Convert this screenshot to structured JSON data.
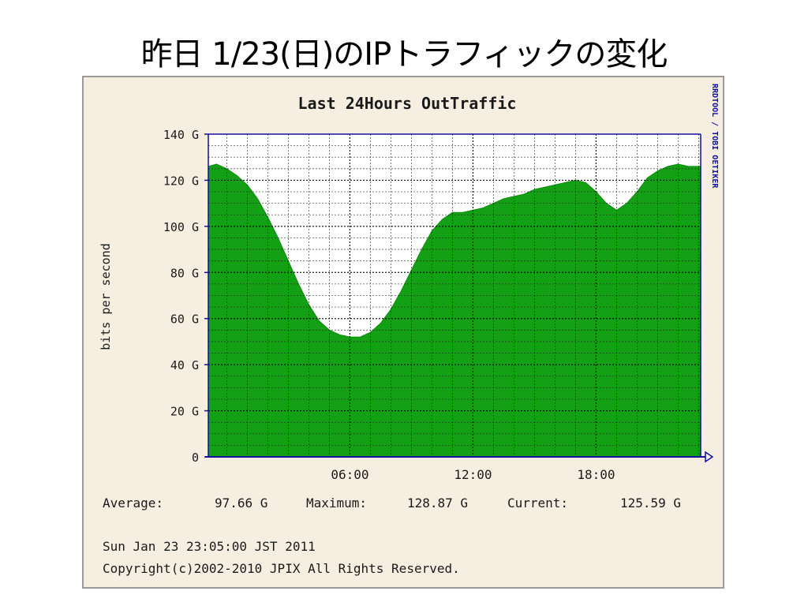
{
  "slide": {
    "title": "昨日 1/23(日)のIPトラフィックの変化"
  },
  "colors": {
    "panel_bg": "#f7eee2",
    "area_fill": "#14a014",
    "plot_bg": "#ffffff",
    "axis": "#1010a0",
    "grid": "#000000",
    "text": "#1a1a1a"
  },
  "chart_data": {
    "type": "area",
    "title": "Last 24Hours OutTraffic",
    "ylabel": "bits per second",
    "side_label": "RRDTOOL / TOBI OETIKER",
    "yticks": [
      "0",
      "20 G",
      "40 G",
      "60 G",
      "80 G",
      "100 G",
      "120 G",
      "140 G"
    ],
    "xticks": [
      "06:00",
      "12:00",
      "18:00"
    ],
    "ylim": [
      0,
      140
    ],
    "xlim_hours": [
      -0.9,
      23.1
    ],
    "xtick_hours": [
      6,
      12,
      18
    ],
    "unit": "Gbps",
    "x": [
      -0.9,
      -0.5,
      0.0,
      0.5,
      1.0,
      1.5,
      2.0,
      2.5,
      3.0,
      3.5,
      4.0,
      4.5,
      5.0,
      5.5,
      6.0,
      6.5,
      7.0,
      7.5,
      8.0,
      8.5,
      9.0,
      9.5,
      10.0,
      10.5,
      11.0,
      11.5,
      12.0,
      12.5,
      13.0,
      13.5,
      14.0,
      14.5,
      15.0,
      15.5,
      16.0,
      16.5,
      17.0,
      17.5,
      18.0,
      18.5,
      19.0,
      19.5,
      20.0,
      20.5,
      21.0,
      21.5,
      22.0,
      22.5,
      23.1
    ],
    "values": [
      126,
      127,
      125,
      122,
      118,
      112,
      104,
      95,
      85,
      75,
      66,
      59,
      55,
      53,
      52,
      52,
      54,
      58,
      64,
      72,
      81,
      90,
      98,
      103,
      106,
      106,
      107,
      108,
      110,
      112,
      113,
      114,
      116,
      117,
      118,
      119,
      120,
      119,
      115,
      110,
      107,
      110,
      115,
      121,
      124,
      126,
      127,
      126,
      126
    ],
    "stats": {
      "average_label": "Average:",
      "average": "97.66 G",
      "maximum_label": "Maximum:",
      "maximum": "128.87 G",
      "current_label": "Current:",
      "current": "125.59 G"
    },
    "timestamp": "Sun Jan 23 23:05:00 JST 2011",
    "copyright": "Copyright(c)2002-2010 JPIX All Rights Reserved."
  }
}
